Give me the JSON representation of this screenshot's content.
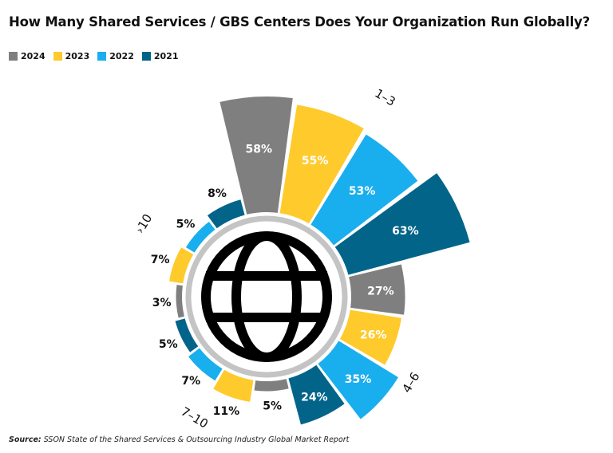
{
  "title": "How Many Shared Services / GBS Centers Does Your Organization Run Globally?",
  "legend": [
    {
      "label": "2024",
      "color": "#7f7f7f"
    },
    {
      "label": "2023",
      "color": "#ffca2c"
    },
    {
      "label": "2022",
      "color": "#19aeee"
    },
    {
      "label": "2021",
      "color": "#03648a"
    }
  ],
  "source": {
    "label": "Source:",
    "text": "SSON State of the Shared Services & Outsourcing Industry Global Market Report"
  },
  "chart_data": {
    "type": "radial-bar",
    "title": "How Many Shared Services / GBS Centers Does Your Organization Run Globally?",
    "categories": [
      "1–3",
      "4–6",
      "7–10",
      "›10"
    ],
    "series": [
      {
        "name": "2024",
        "color": "#7f7f7f",
        "values": [
          58,
          27,
          5,
          3
        ]
      },
      {
        "name": "2023",
        "color": "#ffca2c",
        "values": [
          55,
          26,
          11,
          7
        ]
      },
      {
        "name": "2022",
        "color": "#19aeee",
        "values": [
          53,
          35,
          7,
          5
        ]
      },
      {
        "name": "2021",
        "color": "#03648a",
        "values": [
          63,
          24,
          5,
          8
        ]
      }
    ],
    "value_suffix": "%",
    "center_icon": "globe-icon"
  }
}
